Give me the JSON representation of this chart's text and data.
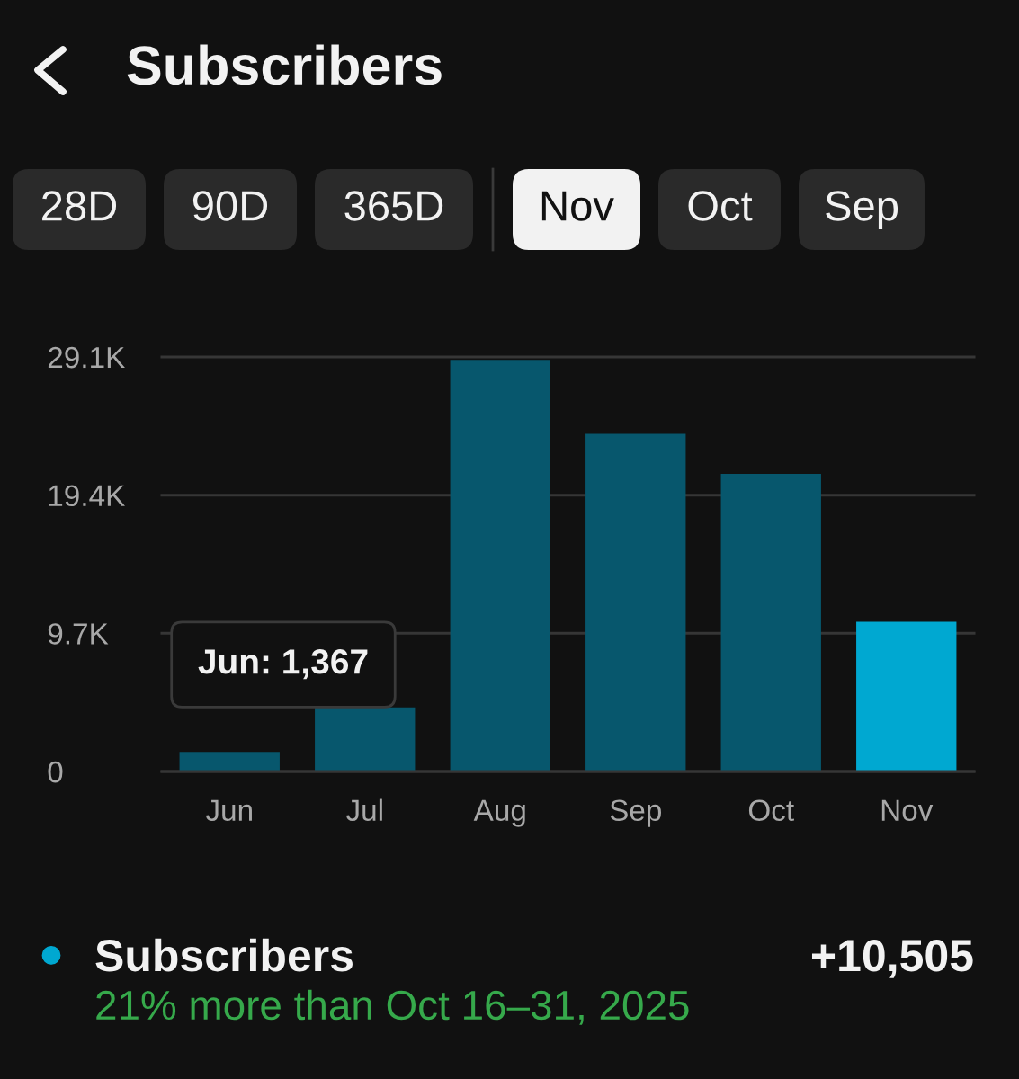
{
  "chart_data": {
    "type": "bar",
    "title": "Subscribers",
    "categories": [
      "Jun",
      "Jul",
      "Aug",
      "Sep",
      "Oct",
      "Nov"
    ],
    "series": [
      {
        "name": "Subscribers",
        "color": "#00a8d1",
        "colors": [
          "#07576d",
          "#07576d",
          "#07576d",
          "#07576d",
          "#07576d",
          "#00a8d1"
        ],
        "values": [
          1367,
          4500,
          28900,
          23700,
          20900,
          10505
        ]
      }
    ],
    "ylim": [
      0,
      29100
    ],
    "yticks": [
      0,
      {
        "value": 9700,
        "label": "9.7K"
      },
      {
        "value": 19400,
        "label": "19.4K"
      },
      {
        "value": 29100,
        "label": "29.1K"
      }
    ],
    "grid": "y",
    "legend": "bottom",
    "annotations": [
      "28D",
      "90D",
      "365D",
      "Nov",
      "Oct",
      "Sep",
      {
        "text": "Jun: 1,367",
        "x": "Jun",
        "y": 1367
      },
      "+10,505",
      "21% more than Oct 16–31, 2025"
    ]
  }
}
